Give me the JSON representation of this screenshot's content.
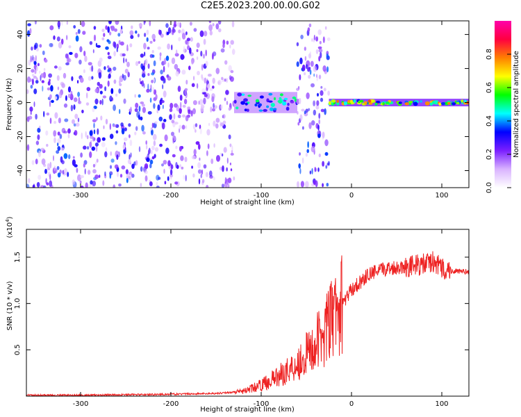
{
  "title": "C2E5.2023.200.00.00.G02",
  "chart_data": [
    {
      "type": "heatmap",
      "xlabel": "Height of straight line (km)",
      "ylabel": "Frequency (Hz)",
      "xlim": [
        -360,
        130
      ],
      "ylim": [
        -50,
        48
      ],
      "xticks": [
        -300,
        -200,
        -100,
        0,
        100
      ],
      "yticks": [
        -40,
        -20,
        0,
        20,
        40
      ],
      "colorbar": {
        "label": "Normalized spectral amplitude",
        "range": [
          0,
          1
        ],
        "ticks": [
          "0.0",
          "0.2",
          "0.4",
          "0.6",
          "0.8"
        ],
        "colors": [
          "#ffffff",
          "#d9b3ff",
          "#7b1fff",
          "#0000ff",
          "#00ffff",
          "#00ff00",
          "#ffff00",
          "#ff8000",
          "#ff0040",
          "#ff00aa"
        ]
      },
      "regions": [
        {
          "x": [
            -360,
            -200
          ],
          "freq": [
            -50,
            48
          ],
          "amplitude": 0.2,
          "pattern": "scattered noise"
        },
        {
          "x": [
            -200,
            -130
          ],
          "freq": [
            -50,
            48
          ],
          "amplitude": 0.15,
          "pattern": "scattered noise"
        },
        {
          "x": [
            -130,
            -60
          ],
          "freq": [
            -5,
            5
          ],
          "amplitude": 0.35,
          "pattern": "band"
        },
        {
          "x": [
            -60,
            -25
          ],
          "freq": [
            -50,
            48
          ],
          "amplitude": 0.2,
          "pattern": "scattered noise"
        },
        {
          "x": [
            -25,
            130
          ],
          "freq": [
            -1,
            1
          ],
          "amplitude": 0.55,
          "pattern": "narrow band"
        }
      ]
    },
    {
      "type": "line",
      "xlabel": "Height of straight line (km)",
      "ylabel": "SNR (10 * v/v)",
      "yscale_label": "(x10",
      "yscale_exp": "4",
      "yscale_close": ")",
      "xlim": [
        -360,
        130
      ],
      "ylim": [
        0,
        1.8
      ],
      "xticks": [
        -300,
        -200,
        -100,
        0,
        100
      ],
      "yticks": [
        "0.5",
        "1.0",
        "1.5"
      ],
      "color": "#ee2222",
      "series": [
        {
          "x": [
            -360,
            -300,
            -250,
            -200,
            -150,
            -120,
            -100,
            -80,
            -60,
            -40,
            -20,
            0,
            20,
            40,
            60,
            80,
            90,
            100,
            110,
            130
          ],
          "values": [
            0.01,
            0.01,
            0.015,
            0.02,
            0.03,
            0.05,
            0.12,
            0.22,
            0.35,
            0.55,
            0.85,
            1.15,
            1.32,
            1.38,
            1.4,
            1.42,
            1.45,
            1.38,
            1.35,
            1.34
          ]
        }
      ]
    }
  ]
}
